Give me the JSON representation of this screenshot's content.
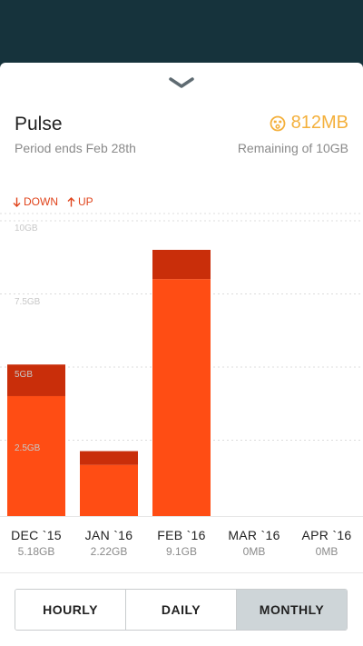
{
  "header": {
    "title": "Pulse",
    "period": "Period ends Feb 28th",
    "usage": "812MB",
    "remaining": "Remaining of 10GB"
  },
  "legend": {
    "down_label": "DOWN",
    "up_label": "UP"
  },
  "colors": {
    "down": "#ff4d14",
    "up": "#c92e0a",
    "accent": "#f4b03c",
    "background": "#16333c"
  },
  "chart_data": {
    "type": "bar",
    "categories": [
      "DEC `15",
      "JAN `16",
      "FEB `16",
      "MAR `16",
      "APR `16"
    ],
    "totals_label": [
      "5.18GB",
      "2.22GB",
      "9.1GB",
      "0MB",
      "0MB"
    ],
    "series": [
      {
        "name": "DOWN",
        "values": [
          4.1,
          1.75,
          8.1,
          0,
          0
        ]
      },
      {
        "name": "UP",
        "values": [
          1.08,
          0.47,
          1.0,
          0,
          0
        ]
      }
    ],
    "y_ticks": [
      "2.5GB",
      "5GB",
      "7.5GB",
      "10GB"
    ],
    "y_tick_values": [
      2.5,
      5,
      7.5,
      10
    ],
    "ylim": [
      0,
      10
    ]
  },
  "toggle": {
    "options": [
      "HOURLY",
      "DAILY",
      "MONTHLY"
    ],
    "active": "MONTHLY"
  }
}
